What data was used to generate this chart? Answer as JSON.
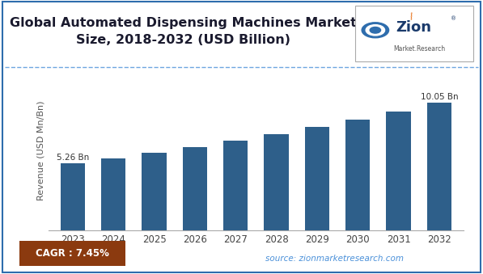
{
  "title_line1": "Global Automated Dispensing Machines Market",
  "title_line2": "Size, 2018-2032 (USD Billion)",
  "ylabel": "Revenue (USD Mn/Bn)",
  "categories": [
    "2023",
    "2024",
    "2025",
    "2026",
    "2027",
    "2028",
    "2029",
    "2030",
    "2031",
    "2032"
  ],
  "values": [
    5.26,
    5.65,
    6.07,
    6.53,
    7.01,
    7.54,
    8.1,
    8.7,
    9.35,
    10.05
  ],
  "bar_color": "#2E5F8A",
  "bar_label_first": "5.26 Bn",
  "bar_label_last": "10.05 Bn",
  "cagr_text": "CAGR : 7.45%",
  "cagr_bg": "#8B3A0F",
  "source_text": "source: zionmarketresearch.com",
  "title_color": "#1a1a2e",
  "background_color": "#ffffff",
  "outer_border_color": "#2E6DAD",
  "title_fontsize": 11.5,
  "axis_label_fontsize": 8,
  "tick_fontsize": 8.5,
  "dashed_line_color": "#4A90D9",
  "logo_zion_color": "#1a3a6b",
  "logo_market_color": "#555555",
  "logo_orange": "#E87722",
  "logo_blue": "#2E6DAD",
  "source_color": "#4A90D9"
}
